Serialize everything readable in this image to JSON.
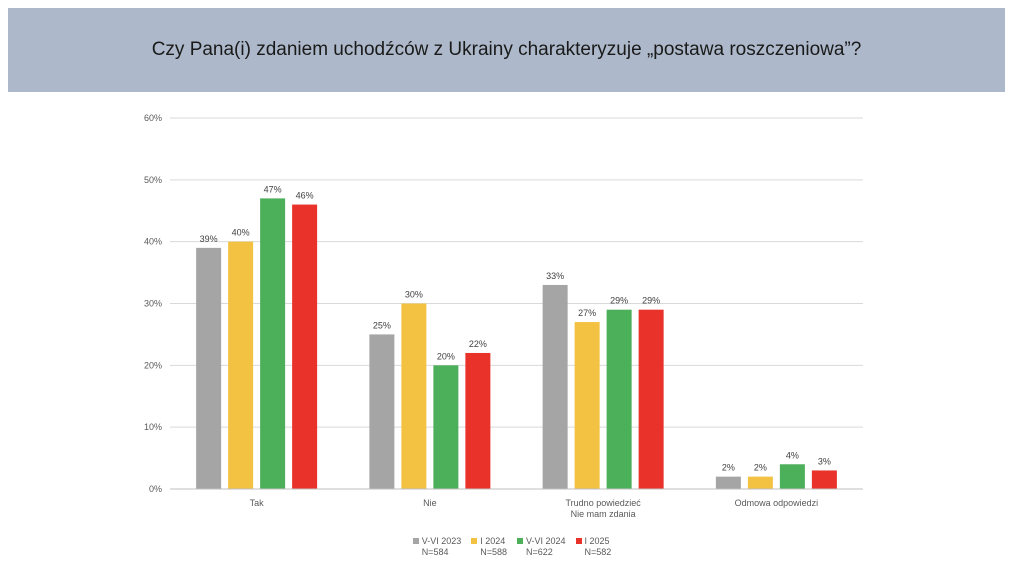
{
  "title": "Czy Pana(i) zdaniem uchodźców z Ukrainy charakteryzuje „postawa roszczeniowa”?",
  "chart_data": {
    "type": "bar",
    "categories": [
      [
        "Tak"
      ],
      [
        "Nie"
      ],
      [
        "Trudno powiedzieć",
        "Nie mam zdania"
      ],
      [
        "Odmowa odpowiedzi"
      ]
    ],
    "series": [
      {
        "name": "V-VI 2023",
        "sample": "N=584",
        "color": "#a5a5a5",
        "values": [
          39,
          25,
          33,
          2
        ]
      },
      {
        "name": "I 2024",
        "sample": "N=588",
        "color": "#f4c242",
        "values": [
          40,
          30,
          27,
          2
        ]
      },
      {
        "name": "V-VI 2024",
        "sample": "N=622",
        "color": "#4caf5a",
        "values": [
          47,
          20,
          29,
          4
        ]
      },
      {
        "name": "I 2025",
        "sample": "N=582",
        "color": "#e8322a",
        "values": [
          46,
          22,
          29,
          3
        ]
      }
    ],
    "data_labels": [
      [
        "39%",
        "25%",
        "33%",
        "2%"
      ],
      [
        "40%",
        "30%",
        "27%",
        "2%"
      ],
      [
        "47%",
        "20%",
        "29%",
        "4%"
      ],
      [
        "46%",
        "22%",
        "29%",
        "3%"
      ]
    ],
    "ylim": [
      0,
      60
    ],
    "yticks": [
      0,
      10,
      20,
      30,
      40,
      50,
      60
    ],
    "ytick_labels": [
      "0%",
      "10%",
      "20%",
      "30%",
      "40%",
      "50%",
      "60%"
    ],
    "grid": true,
    "legend_position": "bottom",
    "xlabel": "",
    "ylabel": ""
  }
}
